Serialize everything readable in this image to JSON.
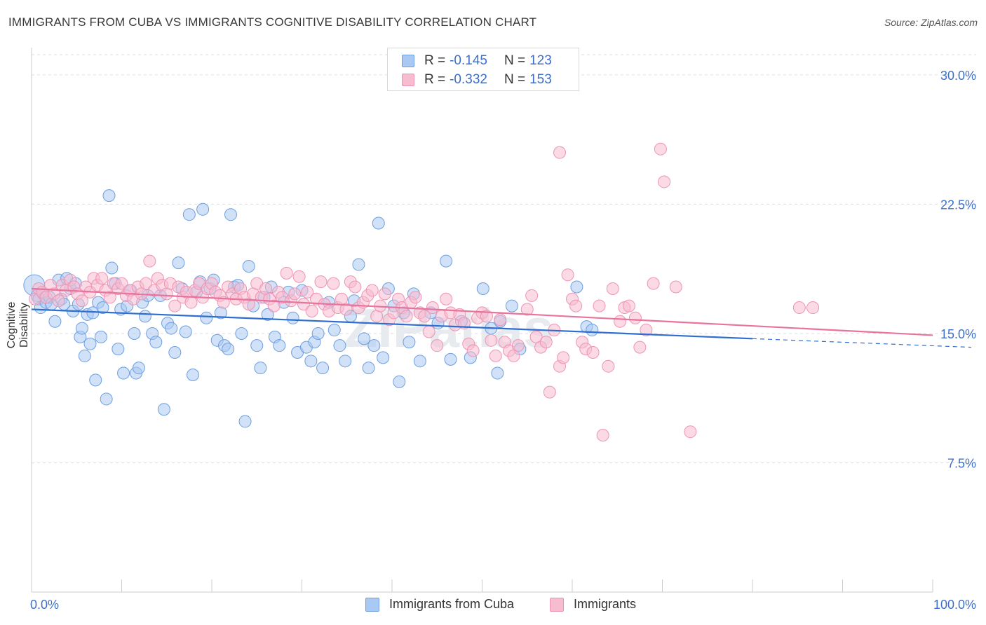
{
  "header": {
    "title": "IMMIGRANTS FROM CUBA VS IMMIGRANTS COGNITIVE DISABILITY CORRELATION CHART",
    "source": "Source: ZipAtlas.com"
  },
  "watermark": "ZIPatlas",
  "legend_top": {
    "series1": {
      "r_label": "R =",
      "r_value": "-0.145",
      "n_label": "N =",
      "n_value": "123"
    },
    "series2": {
      "r_label": "R =",
      "r_value": "-0.332",
      "n_label": "N =",
      "n_value": "153"
    }
  },
  "colors": {
    "blue_fill": "#a9c8f2",
    "blue_stroke": "#6e9fe0",
    "blue_line": "#2f6ecf",
    "pink_fill": "#f7bcd0",
    "pink_stroke": "#ee94b3",
    "pink_line": "#e8739c",
    "axis_label": "#3d6fc9",
    "grid": "#dddddd"
  },
  "chart_data": {
    "type": "scatter",
    "title": "IMMIGRANTS FROM CUBA VS IMMIGRANTS COGNITIVE DISABILITY CORRELATION CHART",
    "xlabel": "",
    "ylabel": "Cognitive Disability",
    "xlim": [
      0,
      100
    ],
    "ylim": [
      0,
      31.5
    ],
    "x_ticks_labels": [
      "0.0%",
      "100.0%"
    ],
    "y_ticks": [
      7.5,
      15.0,
      22.5,
      30.0
    ],
    "y_tick_labels": [
      "7.5%",
      "15.0%",
      "22.5%",
      "30.0%"
    ],
    "grid": "horizontal dashed",
    "legend_position": "bottom",
    "series": [
      {
        "name": "Immigrants from Cuba",
        "color": "#a9c8f2",
        "trend": {
          "x": [
            0,
            80
          ],
          "y": [
            16.4,
            14.7
          ],
          "dashed_extension_to": [
            100,
            14.2
          ]
        },
        "points": [
          [
            0.3,
            17.8
          ],
          [
            0.6,
            17.2
          ],
          [
            0.8,
            17.0
          ],
          [
            1.0,
            16.5
          ],
          [
            1.3,
            17.3
          ],
          [
            1.6,
            16.8
          ],
          [
            2.0,
            17.1
          ],
          [
            2.2,
            16.7
          ],
          [
            2.6,
            15.7
          ],
          [
            3.0,
            18.1
          ],
          [
            3.3,
            17.0
          ],
          [
            3.6,
            16.7
          ],
          [
            3.9,
            18.2
          ],
          [
            4.3,
            17.6
          ],
          [
            4.6,
            16.3
          ],
          [
            4.9,
            17.9
          ],
          [
            5.2,
            16.7
          ],
          [
            5.4,
            14.8
          ],
          [
            5.6,
            15.3
          ],
          [
            5.9,
            13.7
          ],
          [
            6.2,
            16.1
          ],
          [
            6.5,
            14.4
          ],
          [
            6.8,
            16.2
          ],
          [
            7.1,
            12.3
          ],
          [
            7.4,
            16.8
          ],
          [
            7.7,
            14.8
          ],
          [
            7.9,
            16.5
          ],
          [
            8.3,
            11.2
          ],
          [
            8.6,
            23.0
          ],
          [
            8.9,
            18.8
          ],
          [
            9.3,
            17.9
          ],
          [
            9.6,
            14.1
          ],
          [
            9.9,
            16.4
          ],
          [
            10.2,
            12.7
          ],
          [
            10.6,
            16.6
          ],
          [
            11.0,
            17.5
          ],
          [
            11.4,
            15.0
          ],
          [
            11.6,
            12.7
          ],
          [
            11.9,
            13.0
          ],
          [
            12.3,
            16.8
          ],
          [
            12.6,
            16.0
          ],
          [
            12.9,
            17.2
          ],
          [
            13.4,
            15.0
          ],
          [
            13.8,
            14.5
          ],
          [
            14.3,
            17.2
          ],
          [
            14.7,
            10.6
          ],
          [
            15.1,
            15.6
          ],
          [
            15.5,
            15.3
          ],
          [
            15.9,
            13.9
          ],
          [
            16.3,
            19.1
          ],
          [
            16.7,
            17.6
          ],
          [
            17.1,
            15.1
          ],
          [
            17.5,
            21.9
          ],
          [
            17.9,
            12.6
          ],
          [
            18.3,
            17.4
          ],
          [
            18.7,
            18.0
          ],
          [
            19.0,
            22.2
          ],
          [
            19.4,
            15.9
          ],
          [
            19.8,
            17.6
          ],
          [
            20.2,
            18.1
          ],
          [
            20.6,
            14.6
          ],
          [
            21.0,
            16.2
          ],
          [
            21.4,
            14.3
          ],
          [
            21.8,
            14.1
          ],
          [
            22.1,
            21.9
          ],
          [
            22.5,
            17.7
          ],
          [
            22.9,
            17.8
          ],
          [
            23.3,
            15.0
          ],
          [
            23.7,
            9.9
          ],
          [
            24.1,
            18.9
          ],
          [
            24.6,
            16.6
          ],
          [
            25.0,
            14.3
          ],
          [
            25.4,
            13.0
          ],
          [
            25.8,
            17.1
          ],
          [
            26.2,
            16.1
          ],
          [
            26.6,
            17.7
          ],
          [
            27.0,
            14.8
          ],
          [
            27.5,
            14.3
          ],
          [
            28.0,
            16.8
          ],
          [
            28.5,
            17.4
          ],
          [
            29.0,
            15.9
          ],
          [
            29.5,
            13.9
          ],
          [
            30.0,
            17.5
          ],
          [
            30.5,
            14.2
          ],
          [
            31.0,
            13.4
          ],
          [
            31.4,
            14.5
          ],
          [
            31.8,
            15.0
          ],
          [
            32.3,
            13.0
          ],
          [
            33.0,
            16.8
          ],
          [
            33.6,
            15.2
          ],
          [
            34.2,
            14.3
          ],
          [
            34.8,
            13.4
          ],
          [
            35.4,
            16.0
          ],
          [
            35.8,
            16.9
          ],
          [
            36.3,
            19.0
          ],
          [
            36.9,
            14.7
          ],
          [
            37.4,
            13.0
          ],
          [
            38.0,
            14.3
          ],
          [
            38.5,
            21.4
          ],
          [
            39.0,
            13.6
          ],
          [
            39.6,
            17.6
          ],
          [
            40.2,
            16.6
          ],
          [
            40.8,
            12.2
          ],
          [
            41.3,
            16.2
          ],
          [
            41.9,
            14.5
          ],
          [
            42.4,
            17.3
          ],
          [
            43.1,
            13.4
          ],
          [
            44.3,
            16.2
          ],
          [
            45.1,
            15.6
          ],
          [
            46.0,
            19.2
          ],
          [
            46.5,
            13.5
          ],
          [
            47.7,
            15.7
          ],
          [
            48.7,
            13.6
          ],
          [
            50.1,
            17.6
          ],
          [
            51.0,
            15.3
          ],
          [
            51.7,
            12.7
          ],
          [
            52.0,
            15.7
          ],
          [
            53.3,
            16.6
          ],
          [
            54.2,
            14.1
          ],
          [
            60.5,
            17.7
          ],
          [
            61.6,
            15.4
          ],
          [
            62.2,
            15.2
          ]
        ]
      },
      {
        "name": "Immigrants",
        "color": "#f7bcd0",
        "trend": {
          "x": [
            0,
            100
          ],
          "y": [
            17.6,
            14.9
          ]
        },
        "points": [
          [
            0.4,
            17.0
          ],
          [
            0.8,
            17.6
          ],
          [
            1.2,
            17.4
          ],
          [
            1.6,
            17.1
          ],
          [
            2.1,
            17.8
          ],
          [
            2.5,
            17.3
          ],
          [
            3.0,
            16.9
          ],
          [
            3.4,
            17.8
          ],
          [
            3.8,
            17.5
          ],
          [
            4.3,
            18.1
          ],
          [
            4.7,
            17.7
          ],
          [
            5.1,
            17.3
          ],
          [
            5.6,
            16.9
          ],
          [
            6.0,
            17.7
          ],
          [
            6.5,
            17.4
          ],
          [
            6.9,
            18.2
          ],
          [
            7.3,
            17.8
          ],
          [
            7.8,
            18.2
          ],
          [
            8.2,
            17.5
          ],
          [
            8.7,
            17.1
          ],
          [
            9.1,
            17.9
          ],
          [
            9.6,
            17.6
          ],
          [
            10.0,
            17.9
          ],
          [
            10.5,
            17.2
          ],
          [
            10.9,
            17.5
          ],
          [
            11.3,
            17.0
          ],
          [
            11.8,
            17.7
          ],
          [
            12.2,
            17.3
          ],
          [
            12.7,
            17.9
          ],
          [
            13.1,
            19.2
          ],
          [
            13.6,
            17.5
          ],
          [
            14.0,
            18.2
          ],
          [
            14.5,
            17.8
          ],
          [
            15.0,
            17.3
          ],
          [
            15.4,
            17.9
          ],
          [
            15.9,
            16.6
          ],
          [
            16.3,
            17.7
          ],
          [
            16.8,
            17.1
          ],
          [
            17.2,
            17.4
          ],
          [
            17.7,
            16.8
          ],
          [
            18.1,
            17.5
          ],
          [
            18.6,
            17.9
          ],
          [
            19.0,
            17.1
          ],
          [
            19.5,
            17.6
          ],
          [
            20.0,
            17.9
          ],
          [
            20.4,
            17.4
          ],
          [
            20.9,
            17.2
          ],
          [
            21.3,
            16.8
          ],
          [
            21.8,
            17.7
          ],
          [
            22.3,
            17.3
          ],
          [
            22.7,
            17.0
          ],
          [
            23.2,
            17.6
          ],
          [
            23.6,
            17.1
          ],
          [
            24.1,
            16.7
          ],
          [
            24.6,
            17.3
          ],
          [
            25.0,
            17.9
          ],
          [
            25.5,
            17.1
          ],
          [
            26.0,
            17.6
          ],
          [
            26.4,
            17.0
          ],
          [
            26.9,
            16.6
          ],
          [
            27.4,
            17.4
          ],
          [
            27.8,
            17.1
          ],
          [
            28.3,
            18.5
          ],
          [
            28.8,
            16.9
          ],
          [
            29.2,
            17.3
          ],
          [
            29.7,
            18.3
          ],
          [
            30.2,
            16.7
          ],
          [
            30.6,
            17.4
          ],
          [
            31.1,
            16.3
          ],
          [
            31.6,
            17.0
          ],
          [
            32.1,
            18.0
          ],
          [
            32.5,
            16.7
          ],
          [
            33.0,
            16.3
          ],
          [
            33.5,
            17.9
          ],
          [
            34.0,
            16.5
          ],
          [
            34.4,
            17.0
          ],
          [
            34.9,
            16.4
          ],
          [
            35.4,
            18.0
          ],
          [
            35.9,
            17.7
          ],
          [
            36.3,
            16.5
          ],
          [
            36.8,
            16.8
          ],
          [
            37.3,
            17.2
          ],
          [
            37.8,
            17.5
          ],
          [
            38.3,
            16.0
          ],
          [
            38.7,
            16.6
          ],
          [
            39.2,
            17.3
          ],
          [
            39.7,
            15.8
          ],
          [
            40.2,
            16.2
          ],
          [
            40.7,
            17.0
          ],
          [
            41.1,
            16.5
          ],
          [
            41.6,
            16.0
          ],
          [
            42.1,
            16.8
          ],
          [
            42.6,
            17.1
          ],
          [
            43.1,
            16.2
          ],
          [
            43.6,
            16.0
          ],
          [
            44.1,
            15.1
          ],
          [
            44.5,
            16.5
          ],
          [
            45.0,
            14.3
          ],
          [
            45.5,
            16.0
          ],
          [
            46.0,
            17.0
          ],
          [
            46.5,
            16.2
          ],
          [
            47.0,
            15.5
          ],
          [
            47.5,
            16.1
          ],
          [
            48.0,
            15.6
          ],
          [
            48.5,
            14.4
          ],
          [
            49.0,
            14.0
          ],
          [
            49.5,
            15.9
          ],
          [
            50.0,
            16.2
          ],
          [
            50.5,
            16.0
          ],
          [
            51.0,
            14.6
          ],
          [
            51.5,
            13.7
          ],
          [
            52.0,
            15.8
          ],
          [
            52.5,
            14.5
          ],
          [
            53.0,
            14.0
          ],
          [
            53.5,
            13.7
          ],
          [
            54.0,
            14.3
          ],
          [
            55.0,
            16.4
          ],
          [
            55.5,
            17.2
          ],
          [
            56.0,
            14.8
          ],
          [
            56.5,
            14.2
          ],
          [
            57.1,
            14.5
          ],
          [
            57.5,
            11.6
          ],
          [
            58.0,
            15.2
          ],
          [
            58.6,
            13.1
          ],
          [
            59.0,
            13.6
          ],
          [
            59.5,
            18.4
          ],
          [
            60.0,
            17.0
          ],
          [
            60.4,
            16.6
          ],
          [
            61.1,
            14.5
          ],
          [
            61.5,
            14.1
          ],
          [
            62.3,
            13.9
          ],
          [
            63.0,
            16.6
          ],
          [
            63.4,
            9.1
          ],
          [
            64.0,
            13.1
          ],
          [
            64.5,
            17.6
          ],
          [
            65.3,
            15.7
          ],
          [
            65.8,
            16.5
          ],
          [
            66.3,
            16.6
          ],
          [
            67.0,
            15.9
          ],
          [
            67.5,
            14.2
          ],
          [
            68.2,
            15.2
          ],
          [
            69.0,
            17.9
          ],
          [
            69.8,
            25.7
          ],
          [
            70.2,
            23.8
          ],
          [
            71.5,
            17.7
          ],
          [
            73.1,
            9.3
          ],
          [
            86.7,
            16.5
          ],
          [
            85.2,
            16.5
          ],
          [
            58.6,
            25.5
          ]
        ]
      }
    ]
  },
  "legend_bottom": {
    "items": [
      {
        "label": "Immigrants from Cuba"
      },
      {
        "label": "Immigrants"
      }
    ]
  }
}
